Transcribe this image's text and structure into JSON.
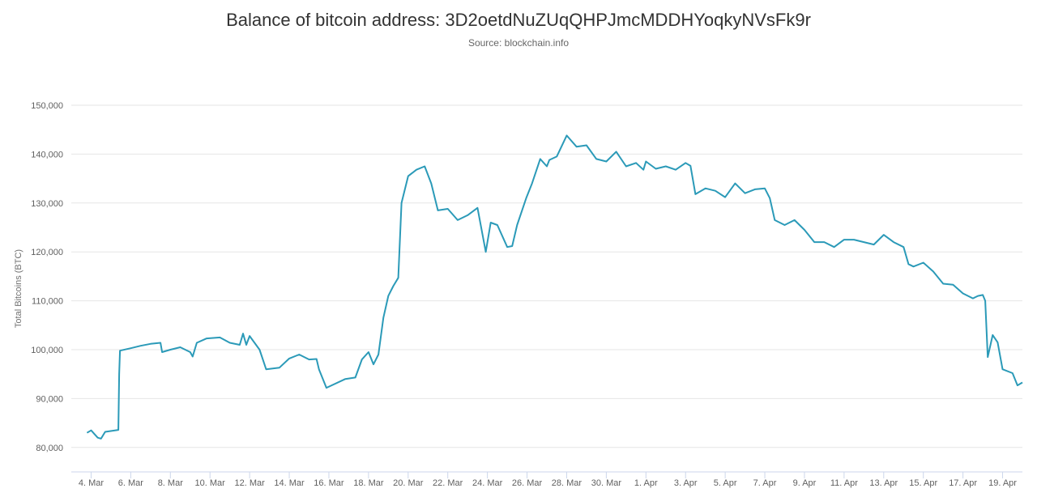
{
  "chart_data": {
    "type": "line",
    "title": "Balance of bitcoin address: 3D2oetdNuZUqQHPJmcMDDHYoqkyNVsFk9r",
    "subtitle": "Source: blockchain.info",
    "ylabel": "Total Bitcoins (BTC)",
    "xlabel": "",
    "ylim": [
      75000,
      150000
    ],
    "yticks": [
      80000,
      90000,
      100000,
      110000,
      120000,
      130000,
      140000,
      150000
    ],
    "ytick_labels": [
      "80,000",
      "90,000",
      "100,000",
      "110,000",
      "120,000",
      "130,000",
      "140,000",
      "150,000"
    ],
    "xlim": [
      "2018-03-03",
      "2018-04-20"
    ],
    "xticks": [
      "2018-03-04",
      "2018-03-06",
      "2018-03-08",
      "2018-03-10",
      "2018-03-12",
      "2018-03-14",
      "2018-03-16",
      "2018-03-18",
      "2018-03-20",
      "2018-03-22",
      "2018-03-24",
      "2018-03-26",
      "2018-03-28",
      "2018-03-30",
      "2018-04-01",
      "2018-04-03",
      "2018-04-05",
      "2018-04-07",
      "2018-04-09",
      "2018-04-11",
      "2018-04-13",
      "2018-04-15",
      "2018-04-17",
      "2018-04-19"
    ],
    "xtick_labels": [
      "4. Mar",
      "6. Mar",
      "8. Mar",
      "10. Mar",
      "12. Mar",
      "14. Mar",
      "16. Mar",
      "18. Mar",
      "20. Mar",
      "22. Mar",
      "24. Mar",
      "26. Mar",
      "28. Mar",
      "30. Mar",
      "1. Apr",
      "3. Apr",
      "5. Apr",
      "7. Apr",
      "9. Apr",
      "11. Apr",
      "13. Apr",
      "15. Apr",
      "17. Apr",
      "19. Apr"
    ],
    "grid": true,
    "color": "#2b9ab8",
    "series": [
      {
        "x": [
          "2018-03-03 19:00",
          "2018-03-04 00:00",
          "2018-03-04 08:00",
          "2018-03-04 12:00",
          "2018-03-04 17:00",
          "2018-03-05 09:00",
          "2018-03-05 10:00",
          "2018-03-05 11:00",
          "2018-03-06 00:00",
          "2018-03-06 12:00",
          "2018-03-07 00:00",
          "2018-03-07 12:00",
          "2018-03-07 14:00",
          "2018-03-08 00:00",
          "2018-03-08 12:00",
          "2018-03-09 00:00",
          "2018-03-09 03:00",
          "2018-03-09 08:00",
          "2018-03-09 20:00",
          "2018-03-10 12:00",
          "2018-03-11 00:00",
          "2018-03-11 12:00",
          "2018-03-11 16:00",
          "2018-03-11 20:00",
          "2018-03-12 00:00",
          "2018-03-12 12:00",
          "2018-03-12 20:00",
          "2018-03-13 12:00",
          "2018-03-14 00:00",
          "2018-03-14 12:00",
          "2018-03-15 00:00",
          "2018-03-15 09:00",
          "2018-03-15 12:00",
          "2018-03-15 21:00",
          "2018-03-16 20:00",
          "2018-03-17 08:00",
          "2018-03-17 16:00",
          "2018-03-18 00:00",
          "2018-03-18 06:00",
          "2018-03-18 12:00",
          "2018-03-18 18:00",
          "2018-03-19 00:00",
          "2018-03-19 06:00",
          "2018-03-19 12:00",
          "2018-03-19 16:00",
          "2018-03-20 00:00",
          "2018-03-20 10:00",
          "2018-03-20 20:00",
          "2018-03-21 04:00",
          "2018-03-21 12:00",
          "2018-03-22 00:00",
          "2018-03-22 12:00",
          "2018-03-23 00:00",
          "2018-03-23 12:00",
          "2018-03-23 22:00",
          "2018-03-24 04:00",
          "2018-03-24 12:00",
          "2018-03-25 00:00",
          "2018-03-25 06:00",
          "2018-03-25 12:00",
          "2018-03-25 23:00",
          "2018-03-26 06:00",
          "2018-03-26 16:00",
          "2018-03-27 00:00",
          "2018-03-27 03:00",
          "2018-03-27 12:00",
          "2018-03-28 00:00",
          "2018-03-28 12:00",
          "2018-03-29 00:00",
          "2018-03-29 12:00",
          "2018-03-30 00:00",
          "2018-03-30 12:00",
          "2018-03-31 00:00",
          "2018-03-31 12:00",
          "2018-03-31 21:00",
          "2018-04-01 00:00",
          "2018-04-01 12:00",
          "2018-04-02 00:00",
          "2018-04-02 12:00",
          "2018-04-03 00:00",
          "2018-04-03 06:00",
          "2018-04-03 12:00",
          "2018-04-04 00:00",
          "2018-04-04 12:00",
          "2018-04-05 00:00",
          "2018-04-05 12:00",
          "2018-04-06 00:00",
          "2018-04-06 12:00",
          "2018-04-07 00:00",
          "2018-04-07 06:00",
          "2018-04-07 12:00",
          "2018-04-08 00:00",
          "2018-04-08 12:00",
          "2018-04-09 00:00",
          "2018-04-09 12:00",
          "2018-04-10 00:00",
          "2018-04-10 12:00",
          "2018-04-11 00:00",
          "2018-04-11 12:00",
          "2018-04-12 00:00",
          "2018-04-12 12:00",
          "2018-04-13 00:00",
          "2018-04-13 12:00",
          "2018-04-14 00:00",
          "2018-04-14 06:00",
          "2018-04-14 12:00",
          "2018-04-15 00:00",
          "2018-04-15 12:00",
          "2018-04-16 00:00",
          "2018-04-16 12:00",
          "2018-04-17 00:00",
          "2018-04-17 12:00",
          "2018-04-17 18:00",
          "2018-04-18 00:00",
          "2018-04-18 03:00",
          "2018-04-18 06:00",
          "2018-04-18 12:00",
          "2018-04-18 18:00",
          "2018-04-19 00:00",
          "2018-04-19 12:00",
          "2018-04-19 18:00",
          "2018-04-20 00:00"
        ],
        "y": [
          83000,
          83500,
          82000,
          81800,
          83200,
          83600,
          95000,
          99800,
          100300,
          100800,
          101200,
          101400,
          99500,
          100000,
          100500,
          99500,
          98600,
          101400,
          102300,
          102500,
          101400,
          101000,
          103300,
          101000,
          102800,
          100000,
          96000,
          96300,
          98200,
          99000,
          98000,
          98100,
          96000,
          92200,
          94000,
          94300,
          98000,
          99500,
          97000,
          99000,
          106500,
          111000,
          113000,
          114700,
          130000,
          135500,
          136800,
          137500,
          134000,
          128500,
          128800,
          126500,
          127500,
          129000,
          120000,
          126000,
          125500,
          121000,
          121200,
          125500,
          131000,
          134000,
          139000,
          137500,
          138800,
          139500,
          143800,
          141500,
          141800,
          139000,
          138500,
          140500,
          137500,
          138200,
          136800,
          138500,
          137000,
          137500,
          136800,
          138200,
          137600,
          131800,
          133000,
          132500,
          131200,
          134000,
          132000,
          132800,
          133000,
          131000,
          126500,
          125500,
          126500,
          124500,
          122000,
          122000,
          121000,
          122500,
          122500,
          122000,
          121500,
          123500,
          122000,
          121000,
          117500,
          117000,
          117800,
          116000,
          113500,
          113300,
          111500,
          110500,
          111000,
          111200,
          110000,
          98500,
          103000,
          101500,
          96000,
          95200,
          92700,
          93300
        ]
      }
    ]
  }
}
